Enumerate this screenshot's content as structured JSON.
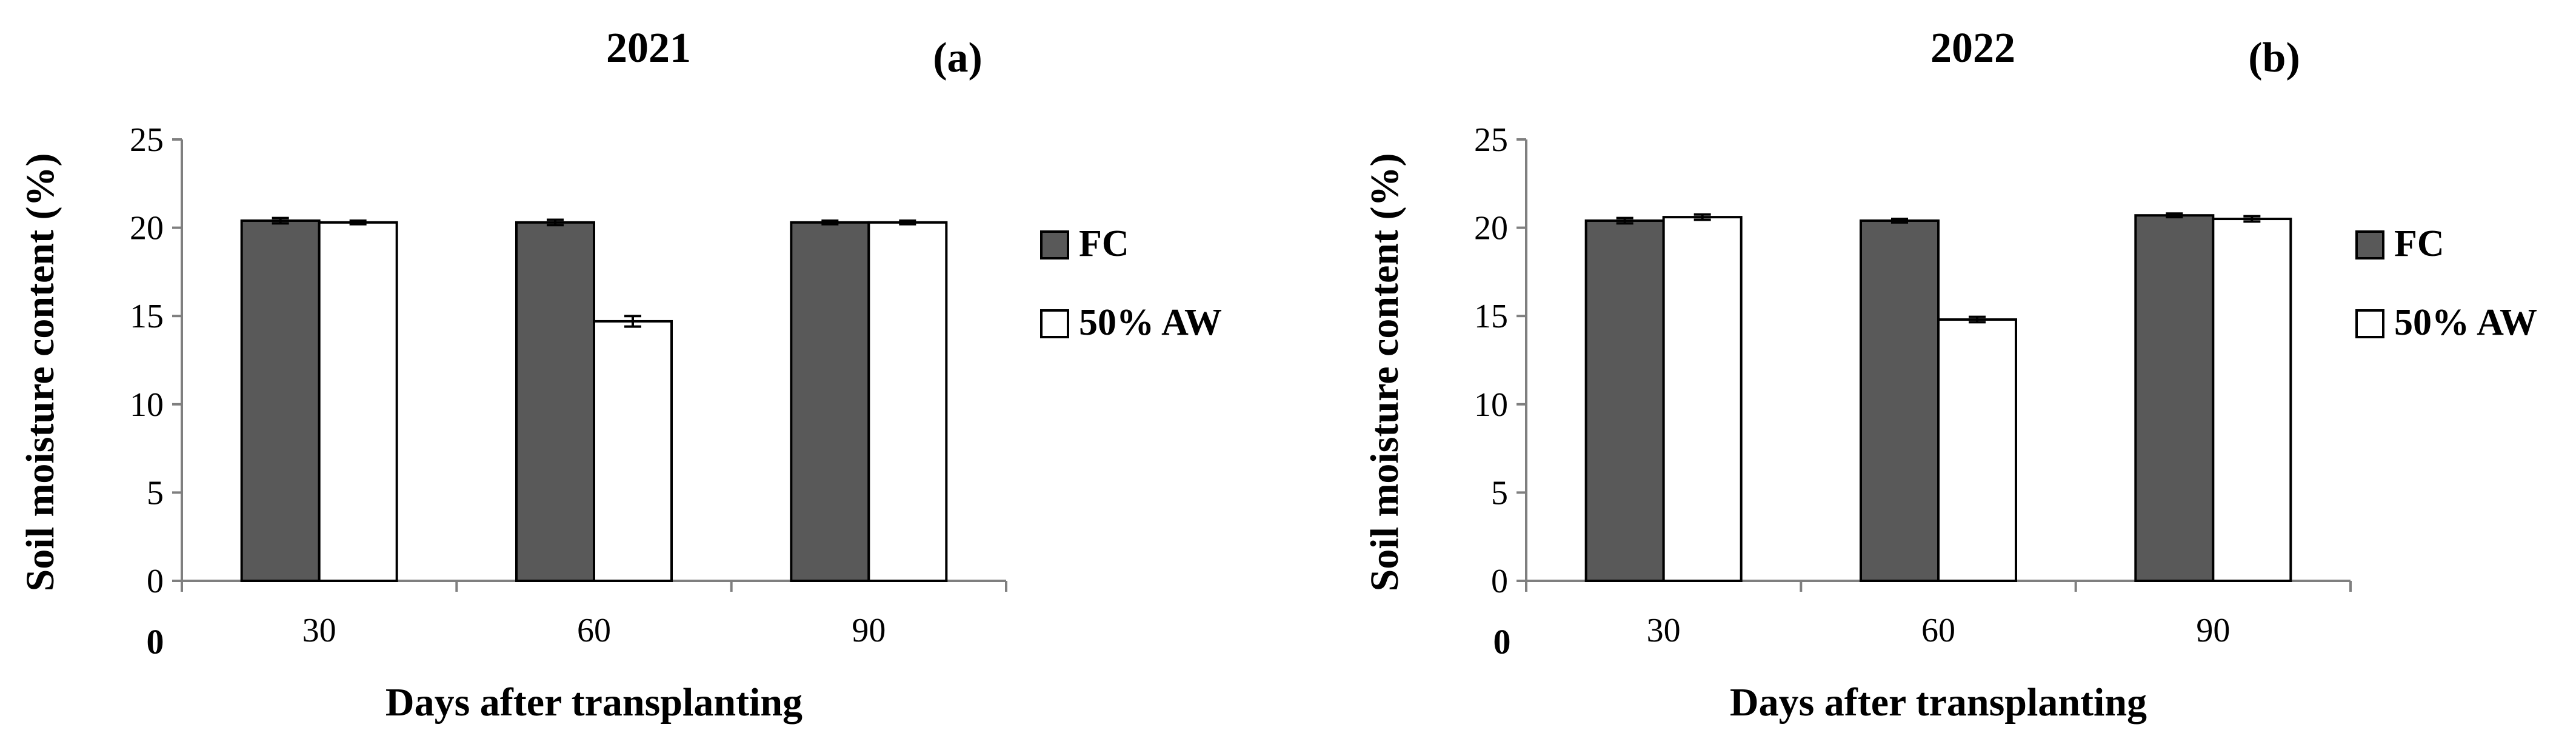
{
  "chart_data": [
    {
      "type": "bar",
      "title": "2021",
      "panel_label": "(a)",
      "xlabel": "Days after transplanting",
      "ylabel": "Soil moisture content (%)",
      "origin_label": "0",
      "ylim": [
        0,
        25
      ],
      "yticks": [
        0,
        5,
        10,
        15,
        20,
        25
      ],
      "categories": [
        "30",
        "60",
        "90"
      ],
      "legend_position": "right",
      "series": [
        {
          "name": "FC",
          "color": "#595959",
          "values": [
            20.4,
            20.3,
            20.3
          ],
          "errors": [
            0.15,
            0.15,
            0.1
          ]
        },
        {
          "name": "50% AW",
          "color": "#ffffff",
          "values": [
            20.3,
            14.7,
            20.3
          ],
          "errors": [
            0.1,
            0.3,
            0.1
          ]
        }
      ]
    },
    {
      "type": "bar",
      "title": "2022",
      "panel_label": "(b)",
      "xlabel": "Days after transplanting",
      "ylabel": "Soil moisture content (%)",
      "origin_label": "0",
      "ylim": [
        0,
        25
      ],
      "yticks": [
        0,
        5,
        10,
        15,
        20,
        25
      ],
      "categories": [
        "30",
        "60",
        "90"
      ],
      "legend_position": "right",
      "series": [
        {
          "name": "FC",
          "color": "#595959",
          "values": [
            20.4,
            20.4,
            20.7
          ],
          "errors": [
            0.15,
            0.1,
            0.1
          ]
        },
        {
          "name": "50% AW",
          "color": "#ffffff",
          "values": [
            20.6,
            14.8,
            20.5
          ],
          "errors": [
            0.15,
            0.15,
            0.15
          ]
        }
      ]
    }
  ]
}
